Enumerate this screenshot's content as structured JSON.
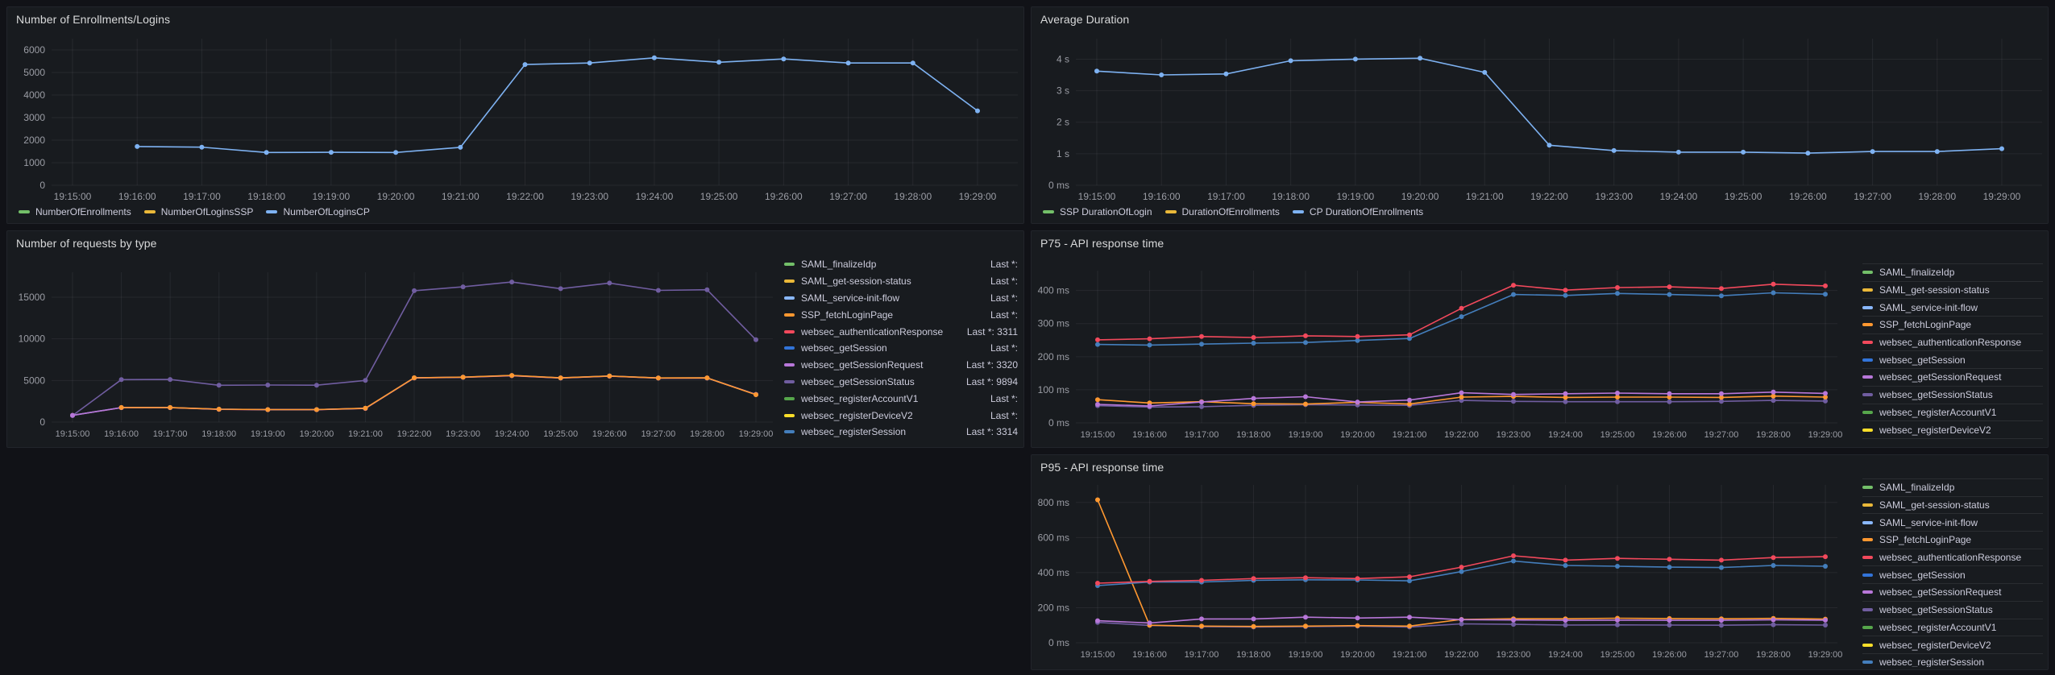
{
  "page": {
    "background": "#111217",
    "panel_background": "#181b1f",
    "panel_border": "#22252b",
    "title_color": "#d8d9da",
    "axis_text_color": "#9b9da5",
    "legend_text_color": "#ccccdc",
    "gridline_color": "rgba(204,204,220,0.08)"
  },
  "chart_data": [
    {
      "type": "line",
      "title": "Number of Enrollments/Logins",
      "x": [
        "19:15:00",
        "19:16:00",
        "19:17:00",
        "19:18:00",
        "19:19:00",
        "19:20:00",
        "19:21:00",
        "19:22:00",
        "19:23:00",
        "19:24:00",
        "19:25:00",
        "19:26:00",
        "19:27:00",
        "19:28:00",
        "19:29:00"
      ],
      "yticks": [
        {
          "label": "0",
          "v": 0
        },
        {
          "label": "1000",
          "v": 1000
        },
        {
          "label": "2000",
          "v": 2000
        },
        {
          "label": "3000",
          "v": 3000
        },
        {
          "label": "4000",
          "v": 4000
        },
        {
          "label": "5000",
          "v": 5000
        },
        {
          "label": "6000",
          "v": 6000
        }
      ],
      "ylim": [
        0,
        6500
      ],
      "grid": true,
      "legend": {
        "placement": "bottom"
      },
      "series": [
        {
          "name": "NumberOfEnrollments",
          "color": "#73BF69",
          "values": null
        },
        {
          "name": "NumberOfLoginsSSP",
          "color": "#EAB839",
          "values": null
        },
        {
          "name": "NumberOfLoginsCP",
          "color": "#7EB2F2",
          "values": [
            null,
            1717,
            1690,
            1455,
            1462,
            1455,
            1683,
            5355,
            5420,
            5650,
            5455,
            5600,
            5420,
            5420,
            3300
          ]
        }
      ]
    },
    {
      "type": "line",
      "title": "Average Duration",
      "x": [
        "19:15:00",
        "19:16:00",
        "19:17:00",
        "19:18:00",
        "19:19:00",
        "19:20:00",
        "19:21:00",
        "19:22:00",
        "19:23:00",
        "19:24:00",
        "19:25:00",
        "19:26:00",
        "19:27:00",
        "19:28:00",
        "19:29:00"
      ],
      "yticks": [
        {
          "label": "0 ms",
          "v": 0
        },
        {
          "label": "1 s",
          "v": 1
        },
        {
          "label": "2 s",
          "v": 2
        },
        {
          "label": "3 s",
          "v": 3
        },
        {
          "label": "4 s",
          "v": 4
        }
      ],
      "ylim": [
        0,
        4.65
      ],
      "grid": true,
      "legend": {
        "placement": "bottom"
      },
      "series": [
        {
          "name": "SSP DurationOfLogin",
          "color": "#73BF69",
          "values": null
        },
        {
          "name": "DurationOfEnrollments",
          "color": "#EAB839",
          "values": null
        },
        {
          "name": "CP DurationOfEnrollments",
          "color": "#7EB2F2",
          "values": [
            3.62,
            3.5,
            3.53,
            3.95,
            4.0,
            4.03,
            3.58,
            1.27,
            1.1,
            1.05,
            1.05,
            1.02,
            1.07,
            1.07,
            1.16
          ]
        }
      ]
    },
    {
      "type": "line",
      "title": "Number of requests by type",
      "x": [
        "19:15:00",
        "19:16:00",
        "19:17:00",
        "19:18:00",
        "19:19:00",
        "19:20:00",
        "19:21:00",
        "19:22:00",
        "19:23:00",
        "19:24:00",
        "19:25:00",
        "19:26:00",
        "19:27:00",
        "19:28:00",
        "19:29:00"
      ],
      "yticks": [
        {
          "label": "0",
          "v": 0
        },
        {
          "label": "5000",
          "v": 5000
        },
        {
          "label": "10000",
          "v": 10000
        },
        {
          "label": "15000",
          "v": 15000
        }
      ],
      "ylim": [
        0,
        18000
      ],
      "grid": true,
      "legend": {
        "placement": "right",
        "show_values": true,
        "value_prefix": "Last *:"
      },
      "series": [
        {
          "name": "SAML_finalizeIdp",
          "color": "#73BF69",
          "values": null,
          "last": ""
        },
        {
          "name": "SAML_get-session-status",
          "color": "#EAB839",
          "values": null,
          "last": ""
        },
        {
          "name": "SAML_service-init-flow",
          "color": "#8AB8FF",
          "values": null,
          "last": ""
        },
        {
          "name": "SSP_fetchLoginPage",
          "color": "#FF9830",
          "z": 4,
          "last": "",
          "values": [
            null,
            1750,
            1750,
            1550,
            1500,
            1500,
            1660,
            5320,
            5400,
            5600,
            5310,
            5540,
            5300,
            5310,
            3290
          ]
        },
        {
          "name": "websec_authenticationResponse",
          "color": "#F2495C",
          "z": 1,
          "last": "3311",
          "values": [
            820,
            1730,
            1730,
            1530,
            1490,
            1490,
            1640,
            5300,
            5380,
            5570,
            5290,
            5520,
            5280,
            5290,
            3311
          ]
        },
        {
          "name": "websec_getSession",
          "color": "#3274D9",
          "values": null,
          "last": ""
        },
        {
          "name": "websec_getSessionRequest",
          "color": "#B877D9",
          "z": 3,
          "last": "3320",
          "values": [
            800,
            1740,
            1740,
            1540,
            1495,
            1495,
            1650,
            5310,
            5390,
            5580,
            5300,
            5530,
            5290,
            5300,
            3320
          ]
        },
        {
          "name": "websec_getSessionStatus",
          "color": "#705DA0",
          "z": 2,
          "last": "9894",
          "values": [
            780,
            5100,
            5120,
            4420,
            4450,
            4430,
            5000,
            15780,
            16250,
            16830,
            16030,
            16700,
            15820,
            15900,
            9894
          ]
        },
        {
          "name": "websec_registerAccountV1",
          "color": "#56A64B",
          "values": null,
          "last": ""
        },
        {
          "name": "websec_registerDeviceV2",
          "color": "#FADE2A",
          "values": null,
          "last": ""
        },
        {
          "name": "websec_registerSession",
          "color": "#447EBC",
          "z": 1,
          "last": "3314",
          "values": [
            810,
            1745,
            1745,
            1545,
            1498,
            1498,
            1655,
            5315,
            5395,
            5590,
            5305,
            5535,
            5295,
            5305,
            3314
          ]
        }
      ]
    },
    {
      "type": "line",
      "title": "P75 - API response time",
      "x": [
        "19:15:00",
        "19:16:00",
        "19:17:00",
        "19:18:00",
        "19:19:00",
        "19:20:00",
        "19:21:00",
        "19:22:00",
        "19:23:00",
        "19:24:00",
        "19:25:00",
        "19:26:00",
        "19:27:00",
        "19:28:00",
        "19:29:00"
      ],
      "yticks": [
        {
          "label": "0 ms",
          "v": 0
        },
        {
          "label": "100 ms",
          "v": 100
        },
        {
          "label": "200 ms",
          "v": 200
        },
        {
          "label": "300 ms",
          "v": 300
        },
        {
          "label": "400 ms",
          "v": 400
        }
      ],
      "ylim": [
        0,
        460
      ],
      "grid": true,
      "legend": {
        "placement": "right-table",
        "show_values": false
      },
      "series": [
        {
          "name": "SAML_finalizeIdp",
          "color": "#73BF69",
          "values": null
        },
        {
          "name": "SAML_get-session-status",
          "color": "#EAB839",
          "values": null
        },
        {
          "name": "SAML_service-init-flow",
          "color": "#8AB8FF",
          "values": null
        },
        {
          "name": "SSP_fetchLoginPage",
          "color": "#FF9830",
          "z": 2,
          "values": [
            70,
            60,
            64,
            58,
            57,
            62,
            57,
            78,
            80,
            77,
            78,
            78,
            77,
            81,
            78
          ]
        },
        {
          "name": "websec_authenticationResponse",
          "color": "#F2495C",
          "z": 4,
          "values": [
            251,
            254,
            261,
            258,
            263,
            261,
            266,
            346,
            416,
            401,
            409,
            411,
            406,
            419,
            414
          ]
        },
        {
          "name": "websec_getSession",
          "color": "#3274D9",
          "values": null
        },
        {
          "name": "websec_getSessionRequest",
          "color": "#B877D9",
          "z": 3,
          "values": [
            56,
            51,
            63,
            74,
            79,
            63,
            69,
            91,
            86,
            88,
            90,
            88,
            88,
            93,
            89
          ]
        },
        {
          "name": "websec_getSessionStatus",
          "color": "#705DA0",
          "z": 1,
          "values": [
            52,
            48,
            49,
            53,
            55,
            54,
            53,
            68,
            65,
            64,
            64,
            64,
            65,
            68,
            66
          ]
        },
        {
          "name": "websec_registerAccountV1",
          "color": "#56A64B",
          "values": null
        },
        {
          "name": "websec_registerDeviceV2",
          "color": "#FADE2A",
          "values": null
        },
        {
          "name": "websec_registerSession",
          "color": "#447EBC",
          "z": 3,
          "values": [
            237,
            235,
            238,
            241,
            243,
            249,
            255,
            321,
            388,
            385,
            391,
            388,
            384,
            393,
            389
          ]
        }
      ]
    },
    {
      "type": "line",
      "title": "P95 - API response time",
      "x": [
        "19:15:00",
        "19:16:00",
        "19:17:00",
        "19:18:00",
        "19:19:00",
        "19:20:00",
        "19:21:00",
        "19:22:00",
        "19:23:00",
        "19:24:00",
        "19:25:00",
        "19:26:00",
        "19:27:00",
        "19:28:00",
        "19:29:00"
      ],
      "yticks": [
        {
          "label": "0 ms",
          "v": 0
        },
        {
          "label": "200 ms",
          "v": 200
        },
        {
          "label": "400 ms",
          "v": 400
        },
        {
          "label": "600 ms",
          "v": 600
        },
        {
          "label": "800 ms",
          "v": 800
        }
      ],
      "ylim": [
        0,
        900
      ],
      "grid": true,
      "legend": {
        "placement": "right-table",
        "show_values": false
      },
      "series": [
        {
          "name": "SAML_finalizeIdp",
          "color": "#73BF69",
          "values": null
        },
        {
          "name": "SAML_get-session-status",
          "color": "#EAB839",
          "values": null
        },
        {
          "name": "SAML_service-init-flow",
          "color": "#8AB8FF",
          "values": null
        },
        {
          "name": "SSP_fetchLoginPage",
          "color": "#FF9830",
          "z": 2,
          "values": [
            815,
            100,
            95,
            93,
            95,
            98,
            95,
            133,
            137,
            137,
            140,
            138,
            137,
            139,
            135
          ]
        },
        {
          "name": "websec_authenticationResponse",
          "color": "#F2495C",
          "z": 4,
          "values": [
            340,
            350,
            356,
            366,
            371,
            366,
            376,
            431,
            496,
            471,
            481,
            476,
            471,
            486,
            491
          ]
        },
        {
          "name": "websec_getSession",
          "color": "#3274D9",
          "values": null
        },
        {
          "name": "websec_getSessionRequest",
          "color": "#B877D9",
          "z": 3,
          "values": [
            126,
            113,
            136,
            136,
            146,
            141,
            146,
            132,
            130,
            128,
            129,
            128,
            128,
            131,
            129
          ]
        },
        {
          "name": "websec_getSessionStatus",
          "color": "#705DA0",
          "z": 1,
          "values": [
            116,
            99,
            92,
            90,
            92,
            95,
            90,
            108,
            105,
            101,
            102,
            101,
            100,
            103,
            101
          ]
        },
        {
          "name": "websec_registerAccountV1",
          "color": "#56A64B",
          "values": null
        },
        {
          "name": "websec_registerDeviceV2",
          "color": "#FADE2A",
          "values": null
        },
        {
          "name": "websec_registerSession",
          "color": "#447EBC",
          "z": 3,
          "values": [
            326,
            346,
            346,
            356,
            359,
            358,
            353,
            406,
            466,
            441,
            436,
            431,
            429,
            441,
            436
          ]
        }
      ]
    }
  ]
}
